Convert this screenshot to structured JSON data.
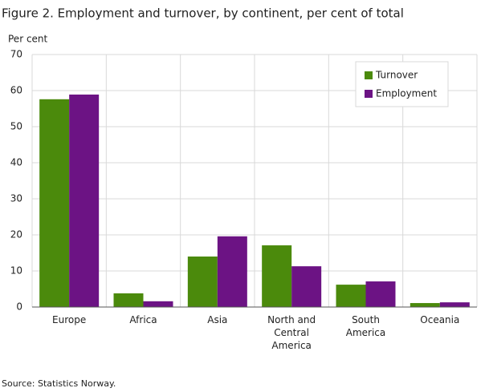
{
  "chart_data": {
    "type": "bar",
    "title": "Figure 2. Employment and turnover, by continent, per cent of total",
    "y_label": "Per cent",
    "categories": [
      "Europe",
      "Africa",
      "Asia",
      "North and Central America",
      "South America",
      "Oceania"
    ],
    "series": [
      {
        "name": "Turnover",
        "color": "#4b8a0c",
        "values": [
          57.6,
          3.8,
          14.0,
          17.1,
          6.2,
          1.1
        ]
      },
      {
        "name": "Employment",
        "color": "#6c1384",
        "values": [
          58.9,
          1.6,
          19.6,
          11.3,
          7.1,
          1.3
        ]
      }
    ],
    "ylim": [
      0,
      70
    ],
    "yticks": [
      0,
      10,
      20,
      30,
      40,
      50,
      60,
      70
    ],
    "grid": true,
    "legend": "top-right",
    "source": "Source: Statistics Norway."
  }
}
